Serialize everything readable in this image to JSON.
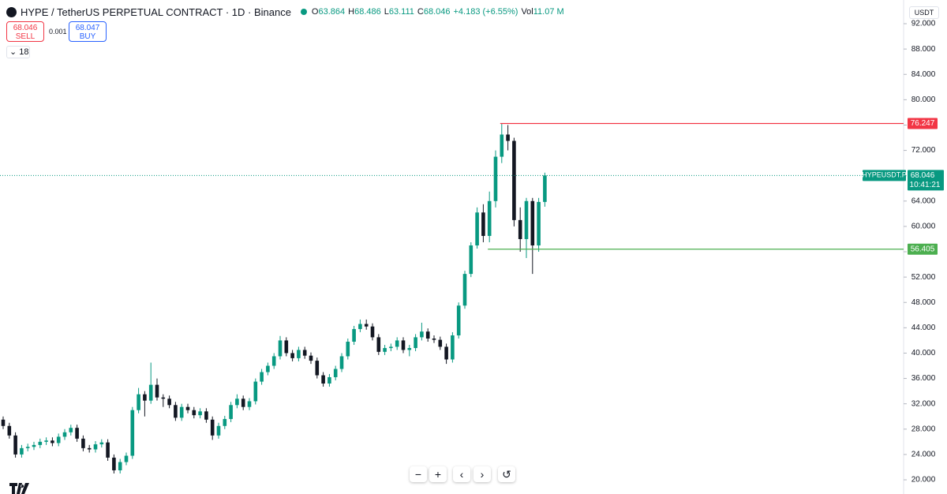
{
  "header": {
    "title": "HYPE / TetherUS PERPETUAL CONTRACT · 1D · Binance",
    "ohlc": [
      {
        "label": "O",
        "value": 63.864
      },
      {
        "label": "H",
        "value": 68.486
      },
      {
        "label": "L",
        "value": 63.111
      },
      {
        "label": "C",
        "value": 68.046
      }
    ],
    "change": "+4.183 (+6.55%)",
    "volume": {
      "label": "Vol",
      "value": "11.07 M"
    }
  },
  "trade": {
    "sell": {
      "price": 68.046,
      "label": "SELL"
    },
    "spread": 0.001,
    "buy": {
      "price": 68.047,
      "label": "BUY"
    }
  },
  "indicators_count": 18,
  "currency": "USDT",
  "chart_data": {
    "type": "candlestick",
    "ylim": [
      17.76,
      95.74
    ],
    "yticks": [
      {
        "value": 20,
        "label": "20.000"
      },
      {
        "value": 24,
        "label": "24.000"
      },
      {
        "value": 28,
        "label": "28.000"
      },
      {
        "value": 32,
        "label": "32.000"
      },
      {
        "value": 36,
        "label": "36.000"
      },
      {
        "value": 40,
        "label": "40.000"
      },
      {
        "value": 44,
        "label": "44.000"
      },
      {
        "value": 48,
        "label": "48.000"
      },
      {
        "value": 52,
        "label": "52.000"
      },
      {
        "value": 56,
        "label": "56.000"
      },
      {
        "value": 60,
        "label": "60.000"
      },
      {
        "value": 64,
        "label": "64.000"
      },
      {
        "value": 68,
        "label": "68.000"
      },
      {
        "value": 72,
        "label": "72.000"
      },
      {
        "value": 76,
        "label": "76.000"
      },
      {
        "value": 80,
        "label": "80.000"
      },
      {
        "value": 84,
        "label": "84.000"
      },
      {
        "value": 88,
        "label": "88.000"
      },
      {
        "value": 92,
        "label": "92.000"
      }
    ],
    "up_color": "#089981",
    "down_color": "#131722",
    "series": {
      "open": [
        29.5,
        28.5,
        27,
        24,
        25,
        25.2,
        25.5,
        26,
        26.2,
        25.8,
        26.8,
        27.5,
        28.2,
        26.5,
        25,
        24.8,
        25.6,
        25.9,
        23.5,
        21.5,
        22.8,
        23.8,
        31,
        33.5,
        32.5,
        35,
        33,
        32.8,
        31.8,
        29.8,
        31.5,
        31,
        30.2,
        30.8,
        29.5,
        27,
        28.5,
        29.6,
        31.8,
        32.8,
        31.5,
        32.4,
        35.5,
        37,
        38,
        39.5,
        42,
        40,
        39.2,
        40.5,
        39.6,
        38.8,
        36.5,
        35.2,
        36.2,
        37.5,
        39.5,
        41.8,
        43.8,
        44.6,
        44.2,
        42.5,
        40.2,
        40.8,
        41,
        42,
        40.5,
        40.8,
        42.5,
        43.4,
        42.3,
        42.1,
        41,
        39,
        42.8,
        47.5,
        52.5,
        57,
        62.2,
        58.5,
        64,
        71,
        74.5,
        73.5,
        61,
        58,
        64,
        57,
        63.864
      ],
      "high": [
        30,
        29,
        27.5,
        25.5,
        25.7,
        26,
        26.5,
        26.7,
        26.7,
        27.3,
        28,
        28.7,
        28.7,
        27,
        25.5,
        26.1,
        26.4,
        26.4,
        24,
        23.3,
        24.3,
        31.5,
        34.5,
        34,
        38.5,
        36,
        33.5,
        33.3,
        32.3,
        32,
        32,
        31.5,
        31.3,
        31.3,
        30,
        29,
        30.1,
        32.3,
        33.5,
        33.3,
        32.9,
        36,
        37.5,
        38.5,
        40,
        42.7,
        42.5,
        40.5,
        41,
        41,
        40.1,
        39.3,
        37,
        36.7,
        38,
        40,
        42.3,
        44.3,
        45.3,
        45.3,
        44.7,
        43,
        41.3,
        41.5,
        42.5,
        42.5,
        41.3,
        43,
        44.8,
        43.9,
        42.8,
        42.6,
        41.5,
        43.3,
        48,
        53,
        57.5,
        63,
        63.5,
        65.5,
        72,
        76.247,
        76,
        74,
        63,
        64.5,
        64.5,
        64.5,
        68.486
      ],
      "low": [
        28,
        26.5,
        23.5,
        23.5,
        24.5,
        24.7,
        25,
        25.5,
        25.3,
        25.3,
        26.3,
        27,
        26,
        24.5,
        24.3,
        24.3,
        25.1,
        23,
        21,
        21,
        22.3,
        23.3,
        30.5,
        30,
        32,
        32.5,
        31.5,
        31.3,
        29.3,
        29.3,
        30.5,
        29.7,
        29.7,
        29,
        26.3,
        26.5,
        28,
        29.1,
        31.3,
        31,
        31,
        31.9,
        35,
        36.5,
        37.5,
        39,
        39.5,
        38.7,
        38.7,
        39.1,
        38.3,
        36,
        34.7,
        34.7,
        35.7,
        37,
        39,
        41.3,
        43.3,
        43.7,
        42,
        39.7,
        39.7,
        40.3,
        40.5,
        40,
        39.5,
        40.3,
        42,
        41.8,
        41.6,
        40.5,
        38.3,
        38.5,
        42.3,
        47,
        52,
        56.5,
        57.5,
        57.5,
        63,
        70,
        72,
        60,
        56,
        55,
        52.5,
        56,
        63.111
      ],
      "close": [
        28.5,
        27,
        24,
        25,
        25.2,
        25.5,
        26,
        26.2,
        25.8,
        26.8,
        27.5,
        28.2,
        26.5,
        25,
        24.8,
        25.6,
        25.9,
        23.5,
        21.5,
        22.8,
        23.8,
        31,
        33.5,
        32.5,
        35,
        33,
        32.8,
        31.8,
        29.8,
        31.5,
        31,
        30.2,
        30.8,
        29.5,
        27,
        28.5,
        29.6,
        31.8,
        32.8,
        31.5,
        32.4,
        35.5,
        37,
        38,
        39.5,
        42,
        40,
        39.2,
        40.5,
        39.6,
        38.8,
        36.5,
        35.2,
        36.2,
        37.5,
        39.5,
        41.8,
        43.8,
        44.6,
        44.2,
        42.5,
        40.2,
        40.8,
        41,
        42,
        40.5,
        40.8,
        42.5,
        43.4,
        42.3,
        42.1,
        41,
        39,
        42.8,
        47.5,
        52.5,
        57,
        62.2,
        58.5,
        64,
        71,
        74.5,
        73.5,
        61,
        58,
        64,
        57,
        63.864,
        68.046
      ]
    },
    "hlines": [
      {
        "value": 76.247,
        "color": "#f23645",
        "start": 81
      },
      {
        "value": 56.405,
        "color": "#4caf50",
        "start": 79
      }
    ],
    "last_price": {
      "symbol": "HYPEUSDT.P",
      "value": 68.046,
      "countdown": "10:41:21"
    }
  }
}
